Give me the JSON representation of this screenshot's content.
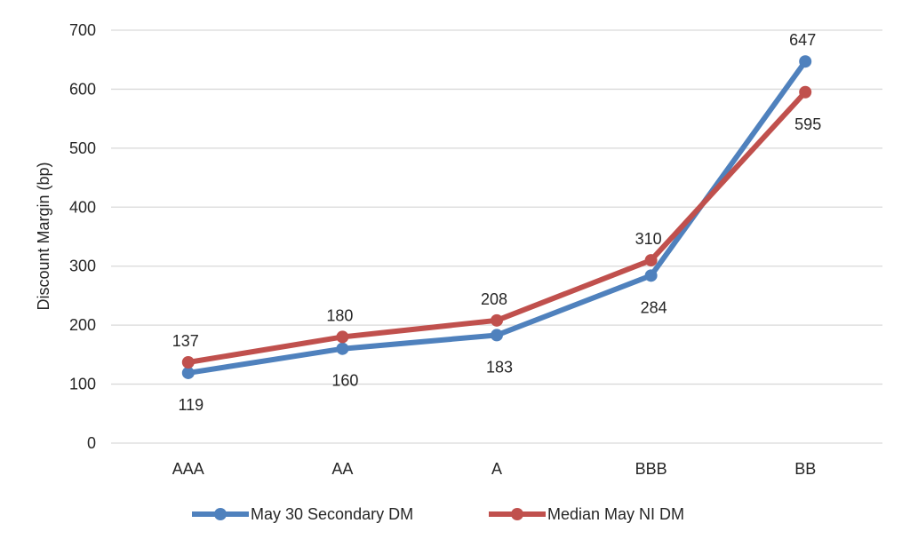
{
  "chart_data": {
    "type": "line",
    "categories": [
      "AAA",
      "AA",
      "A",
      "BBB",
      "BB"
    ],
    "series": [
      {
        "name": "May 30 Secondary DM",
        "values": [
          119,
          160,
          183,
          284,
          647
        ],
        "color": "#4f81bd"
      },
      {
        "name": "Median May NI DM",
        "values": [
          137,
          180,
          208,
          310,
          595
        ],
        "color": "#c0504d"
      }
    ],
    "ylabel": "Discount Margin (bp)",
    "ylim": [
      0,
      700
    ],
    "yticks": [
      0,
      100,
      200,
      300,
      400,
      500,
      600,
      700
    ],
    "grid": true,
    "legend_position": "bottom"
  }
}
